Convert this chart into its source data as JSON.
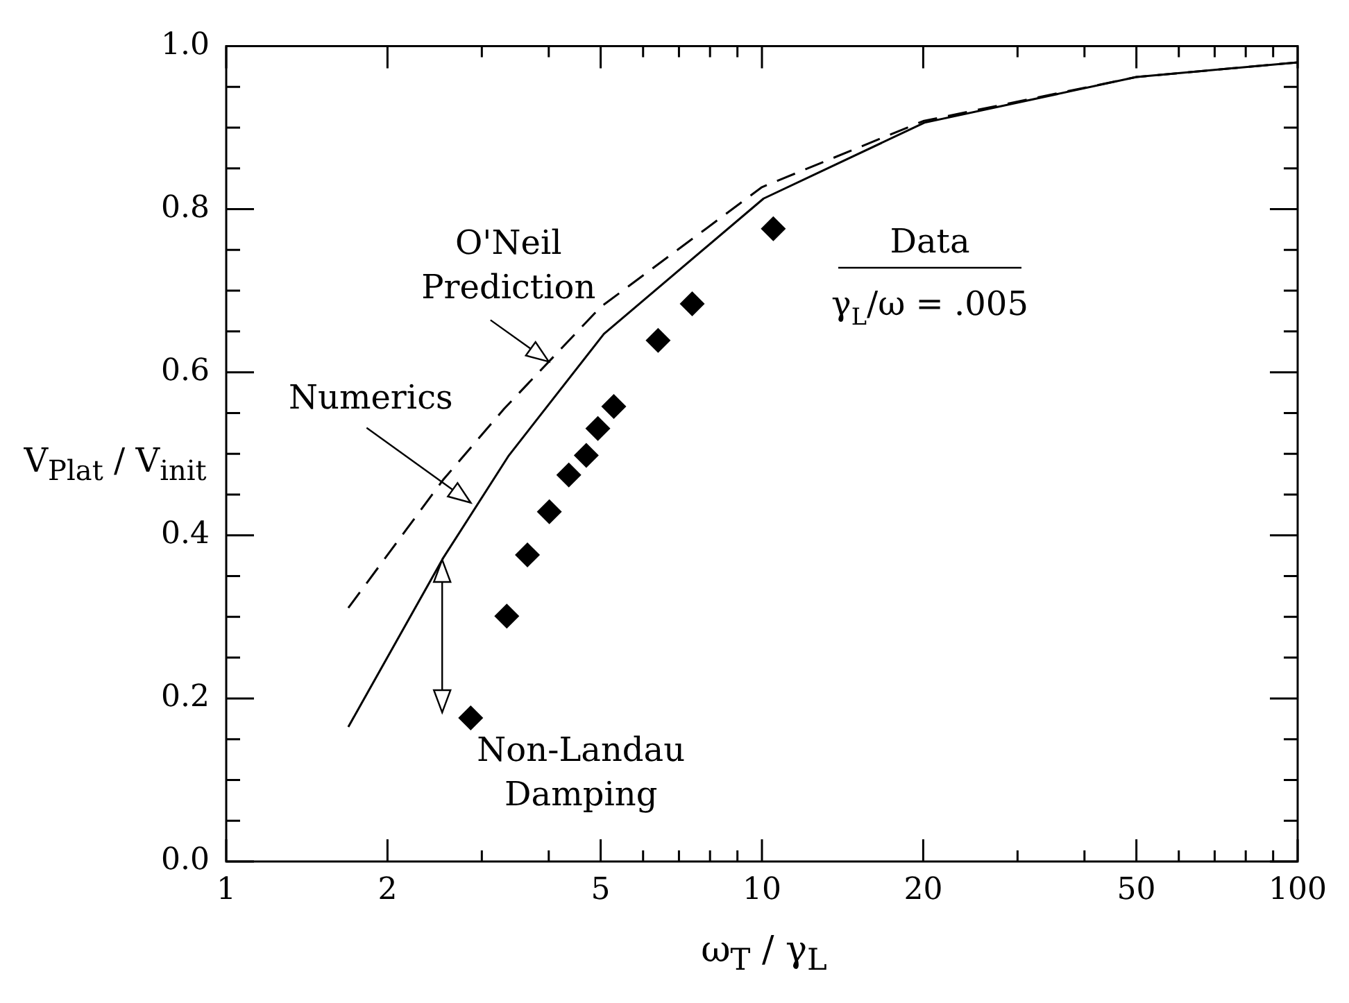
{
  "chart_data": {
    "type": "line",
    "xlabel": "ω$_{T}$ / γ$_{L}$",
    "ylabel": "V$_{Plat}$ / V$_{init}$",
    "log": "x",
    "xlim": [
      1,
      100
    ],
    "ylim": [
      0,
      1
    ],
    "xticks": [
      1,
      2,
      {
        "value": 3,
        "label": null
      },
      {
        "value": 4,
        "label": null
      },
      5,
      {
        "value": 6,
        "label": null
      },
      {
        "value": 7,
        "label": null
      },
      {
        "value": 8,
        "label": null
      },
      {
        "value": 9,
        "label": null
      },
      10,
      20,
      {
        "value": 30,
        "label": null
      },
      {
        "value": 40,
        "label": null
      },
      50,
      {
        "value": 60,
        "label": null
      },
      {
        "value": 70,
        "label": null
      },
      {
        "value": 80,
        "label": null
      },
      {
        "value": 90,
        "label": null
      },
      100
    ],
    "yticks": [
      {
        "value": 0,
        "label": "0.0"
      },
      {
        "value": 0.05,
        "label": null
      },
      {
        "value": 0.1,
        "label": null
      },
      {
        "value": 0.15,
        "label": null
      },
      {
        "value": 0.2,
        "label": "0.2"
      },
      {
        "value": 0.25,
        "label": null
      },
      {
        "value": 0.3,
        "label": null
      },
      {
        "value": 0.35,
        "label": null
      },
      {
        "value": 0.4,
        "label": "0.4"
      },
      {
        "value": 0.45,
        "label": null
      },
      {
        "value": 0.5,
        "label": null
      },
      {
        "value": 0.55,
        "label": null
      },
      {
        "value": 0.6,
        "label": "0.6"
      },
      {
        "value": 0.65,
        "label": null
      },
      {
        "value": 0.7,
        "label": null
      },
      {
        "value": 0.75,
        "label": null
      },
      {
        "value": 0.8,
        "label": "0.8"
      },
      {
        "value": 0.85,
        "label": null
      },
      {
        "value": 0.9,
        "label": null
      },
      {
        "value": 0.95,
        "label": null
      },
      {
        "value": 1,
        "label": "1.0"
      }
    ],
    "series": [
      {
        "type": "line",
        "color": "#000000",
        "line_style": "solid",
        "marker": "none",
        "x": [
          1.69,
          2.54,
          3.37,
          5.07,
          10.07,
          20.1,
          50,
          100
        ],
        "values": [
          0.165,
          0.372,
          0.498,
          0.647,
          0.813,
          0.906,
          0.962,
          0.98
        ]
      },
      {
        "type": "line",
        "color": "#000000",
        "line_style": "dashed",
        "marker": "none",
        "x": [
          1.69,
          2.54,
          3.3,
          5,
          10,
          20,
          50,
          100
        ],
        "values": [
          0.311,
          0.468,
          0.555,
          0.68,
          0.827,
          0.908,
          0.962,
          0.98
        ]
      },
      {
        "type": "scatter",
        "color": "#000000",
        "marker": "diamond",
        "x": [
          2.86,
          3.34,
          3.65,
          4.01,
          4.36,
          4.7,
          4.94,
          5.29,
          6.4,
          7.41,
          10.5
        ],
        "values": [
          0.176,
          0.301,
          0.376,
          0.429,
          0.474,
          0.498,
          0.531,
          0.558,
          0.639,
          0.684,
          0.776
        ]
      }
    ],
    "annotations": [
      {
        "text": "O'Neil Prediction",
        "x": 4.0,
        "y": 0.613
      },
      {
        "text": "Numerics",
        "x": 2.86,
        "y": 0.44
      },
      {
        "text": "Non-Landau Damping",
        "x": 2.53,
        "y": 0.37
      },
      "Data",
      "γ$_{L}$/ω = .005"
    ]
  }
}
